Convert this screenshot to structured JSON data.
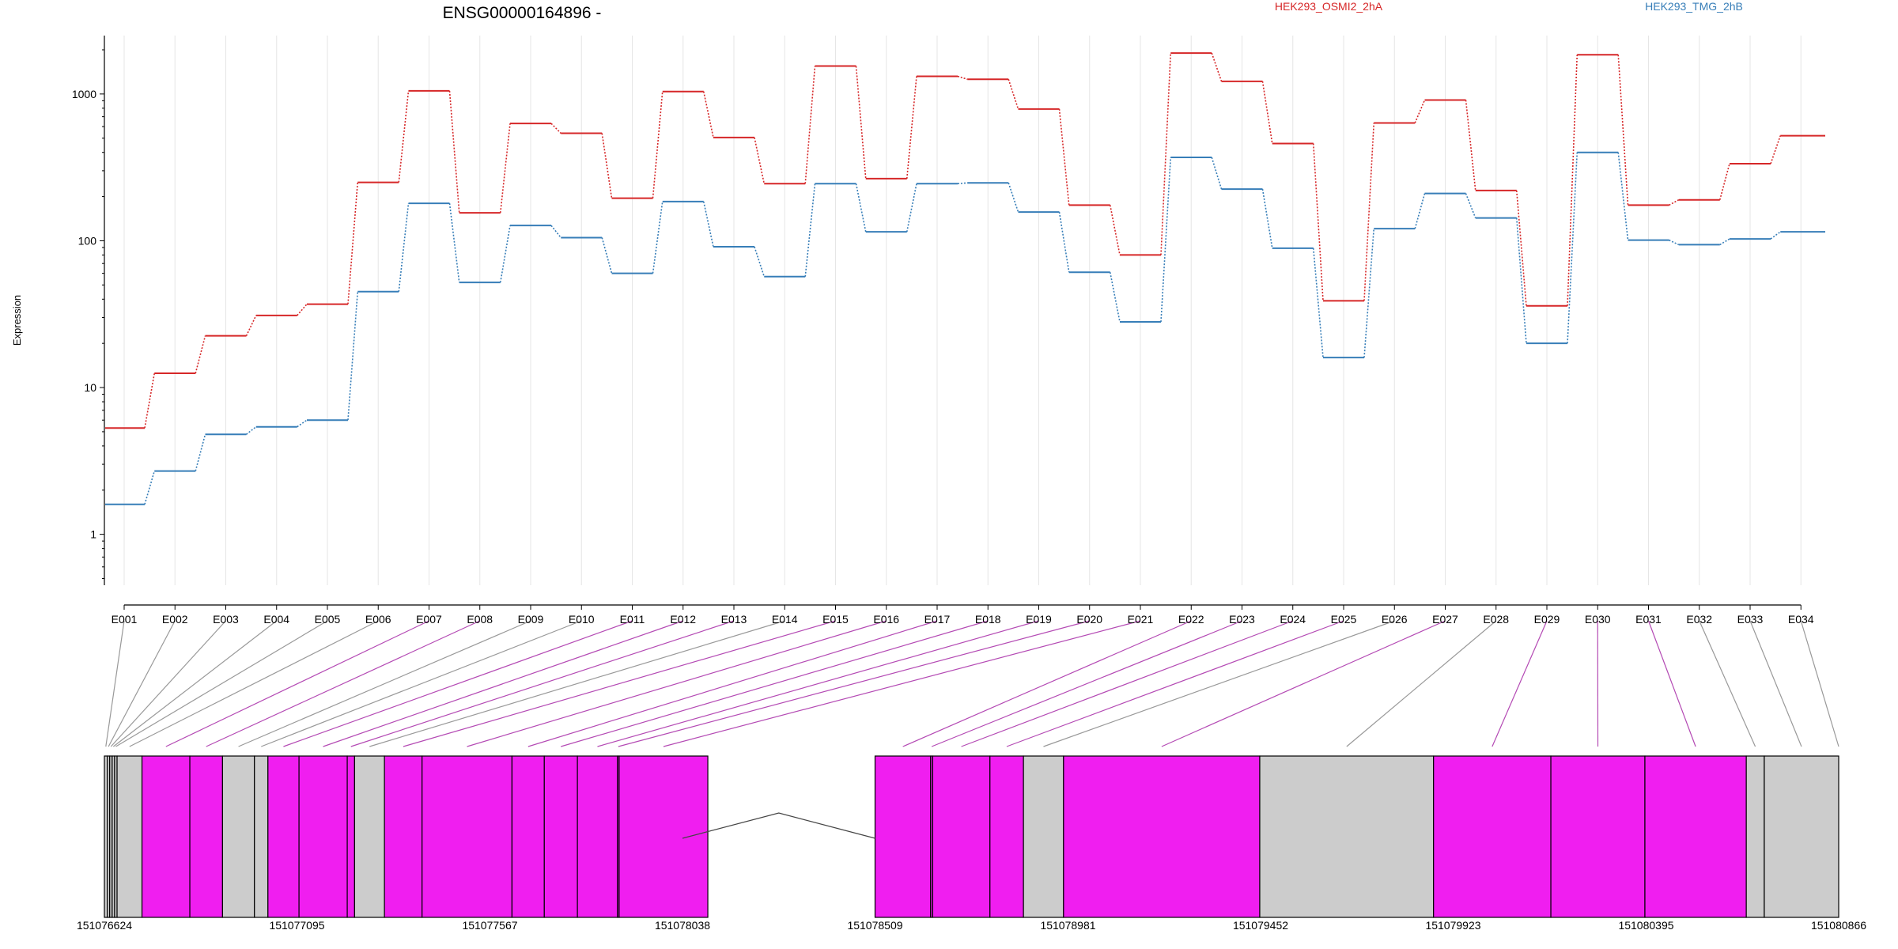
{
  "chart_data": {
    "type": "line",
    "title": "ENSG00000164896 -",
    "xlabel": "",
    "ylabel": "Expression",
    "y_scale": "log",
    "ylim": [
      0.45,
      2500
    ],
    "y_ticks": [
      "1",
      "10",
      "100",
      "1000"
    ],
    "grid": "vertical",
    "legend_position": "top-right",
    "categories": [
      "E001",
      "E002",
      "E003",
      "E004",
      "E005",
      "E006",
      "E007",
      "E008",
      "E009",
      "E010",
      "E011",
      "E012",
      "E013",
      "E014",
      "E015",
      "E016",
      "E017",
      "E018",
      "E019",
      "E020",
      "E021",
      "E022",
      "E023",
      "E024",
      "E025",
      "E026",
      "E027",
      "E028",
      "E029",
      "E030",
      "E031",
      "E032",
      "E033",
      "E034"
    ],
    "series": [
      {
        "name": "HEK293_OSMI2_2hA",
        "color": "#d62728",
        "values": [
          5.3,
          12.5,
          22.5,
          31,
          37,
          250,
          1050,
          155,
          630,
          540,
          195,
          1040,
          505,
          245,
          1550,
          265,
          1320,
          1260,
          790,
          175,
          80,
          1900,
          1220,
          460,
          39,
          635,
          910,
          220,
          36,
          1850,
          175,
          190,
          335,
          520
        ]
      },
      {
        "name": "HEK293_TMG_2hB",
        "color": "#377eb8",
        "values": [
          1.6,
          2.7,
          4.8,
          5.4,
          6.0,
          45,
          180,
          52,
          127,
          105,
          60,
          185,
          91,
          57,
          245,
          115,
          245,
          248,
          157,
          61,
          28,
          370,
          225,
          89,
          16,
          121,
          210,
          143,
          20,
          400,
          101,
          94,
          103,
          115
        ]
      }
    ],
    "gene_model": {
      "coordinate_labels": [
        "151076624",
        "151077095",
        "151077567",
        "151078038",
        "151078509",
        "151078981",
        "151079452",
        "151079923",
        "151080395",
        "151080866"
      ],
      "coord_start": 151076624,
      "coord_end": 151080866,
      "intron_start": 151078038,
      "intron_end": 151078509,
      "exons": [
        {
          "id": "E001",
          "start": 151076624,
          "end": 151076631,
          "type": "noncoding"
        },
        {
          "id": "E002",
          "start": 151076631,
          "end": 151076637,
          "type": "noncoding"
        },
        {
          "id": "E003",
          "start": 151076637,
          "end": 151076643,
          "type": "noncoding"
        },
        {
          "id": "E004",
          "start": 151076643,
          "end": 151076649,
          "type": "noncoding"
        },
        {
          "id": "E005",
          "start": 151076649,
          "end": 151076655,
          "type": "noncoding"
        },
        {
          "id": "E006",
          "start": 151076655,
          "end": 151076716,
          "type": "noncoding"
        },
        {
          "id": "E007",
          "start": 151076716,
          "end": 151076833,
          "type": "coding"
        },
        {
          "id": "E008",
          "start": 151076833,
          "end": 151076913,
          "type": "coding"
        },
        {
          "id": "E009",
          "start": 151076913,
          "end": 151076991,
          "type": "noncoding"
        },
        {
          "id": "E010",
          "start": 151076991,
          "end": 151077024,
          "type": "noncoding"
        },
        {
          "id": "E011",
          "start": 151077024,
          "end": 151077100,
          "type": "coding"
        },
        {
          "id": "E012",
          "start": 151077100,
          "end": 151077218,
          "type": "coding"
        },
        {
          "id": "E013",
          "start": 151077218,
          "end": 151077236,
          "type": "coding"
        },
        {
          "id": "E014",
          "start": 151077236,
          "end": 151077309,
          "type": "noncoding"
        },
        {
          "id": "E015",
          "start": 151077309,
          "end": 151077401,
          "type": "coding"
        },
        {
          "id": "E016",
          "start": 151077401,
          "end": 151077621,
          "type": "coding"
        },
        {
          "id": "E017",
          "start": 151077621,
          "end": 151077700,
          "type": "coding"
        },
        {
          "id": "E018",
          "start": 151077700,
          "end": 151077781,
          "type": "coding"
        },
        {
          "id": "E019",
          "start": 151077781,
          "end": 151077879,
          "type": "coding"
        },
        {
          "id": "E020",
          "start": 151077879,
          "end": 151077883,
          "type": "coding"
        },
        {
          "id": "E021",
          "start": 151077883,
          "end": 151078100,
          "type": "coding"
        },
        {
          "id": "E022",
          "start": 151078509,
          "end": 151078645,
          "type": "coding"
        },
        {
          "id": "E023",
          "start": 151078645,
          "end": 151078650,
          "type": "coding"
        },
        {
          "id": "E024",
          "start": 151078650,
          "end": 151078790,
          "type": "coding"
        },
        {
          "id": "E025",
          "start": 151078790,
          "end": 151078872,
          "type": "coding"
        },
        {
          "id": "E026",
          "start": 151078872,
          "end": 151078970,
          "type": "noncoding"
        },
        {
          "id": "E027",
          "start": 151078970,
          "end": 151079450,
          "type": "coding"
        },
        {
          "id": "E028",
          "start": 151079450,
          "end": 151079875,
          "type": "noncoding"
        },
        {
          "id": "E029",
          "start": 151079875,
          "end": 151080162,
          "type": "coding"
        },
        {
          "id": "E030",
          "start": 151080162,
          "end": 151080392,
          "type": "coding"
        },
        {
          "id": "E031",
          "start": 151080392,
          "end": 151080640,
          "type": "coding"
        },
        {
          "id": "E032",
          "start": 151080640,
          "end": 151080684,
          "type": "noncoding"
        },
        {
          "id": "E033",
          "start": 151080684,
          "end": 151080866,
          "type": "noncoding"
        },
        {
          "id": "E034",
          "start": 151080866,
          "end": 151080866,
          "type": "noncoding"
        }
      ]
    },
    "colors": {
      "coding": "#f01ef0",
      "noncoding": "#cccccc",
      "grid": "#e6e6e6",
      "connector_coding": "#b44ab4",
      "connector_noncoding": "#999999"
    }
  }
}
